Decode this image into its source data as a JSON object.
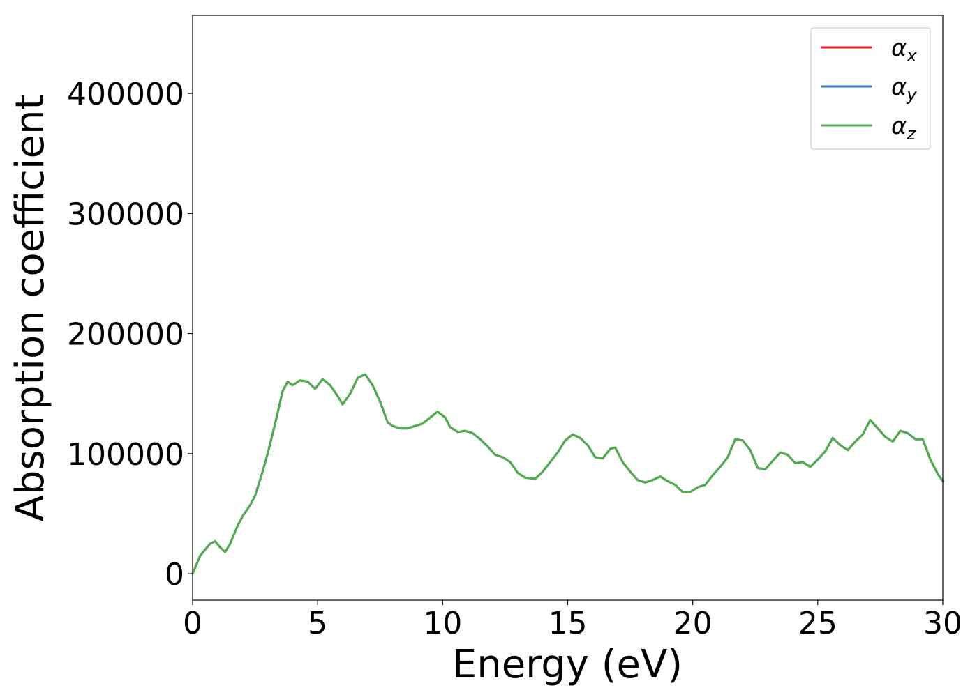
{
  "chart_data": {
    "type": "line",
    "title": "",
    "xlabel": "Energy (eV)",
    "ylabel": "Absorption coefficient",
    "xlim": [
      0,
      30
    ],
    "ylim": [
      -22000,
      465000
    ],
    "xticks": [
      0,
      5,
      10,
      15,
      20,
      25,
      30
    ],
    "yticks": [
      0,
      100000,
      200000,
      300000,
      400000
    ],
    "grid": false,
    "legend_position": "top-right",
    "x": [
      0,
      0.3,
      0.5,
      0.7,
      0.9,
      1.1,
      1.3,
      1.5,
      1.8,
      2.0,
      2.3,
      2.5,
      2.8,
      3.0,
      3.3,
      3.5,
      3.6,
      3.8,
      4.0,
      4.3,
      4.6,
      4.9,
      5.2,
      5.5,
      5.8,
      6.0,
      6.3,
      6.6,
      6.9,
      7.2,
      7.5,
      7.8,
      8.0,
      8.3,
      8.6,
      8.9,
      9.2,
      9.5,
      9.8,
      10.1,
      10.3,
      10.6,
      10.9,
      11.2,
      11.5,
      11.8,
      12.1,
      12.4,
      12.7,
      13.0,
      13.3,
      13.7,
      14.0,
      14.3,
      14.6,
      14.9,
      15.2,
      15.5,
      15.8,
      16.1,
      16.4,
      16.7,
      16.9,
      17.2,
      17.5,
      17.8,
      18.1,
      18.4,
      18.7,
      19.0,
      19.3,
      19.6,
      19.9,
      20.2,
      20.5,
      20.8,
      21.1,
      21.4,
      21.7,
      22.0,
      22.3,
      22.6,
      22.9,
      23.2,
      23.5,
      23.8,
      24.1,
      24.4,
      24.7,
      25.0,
      25.3,
      25.6,
      25.9,
      26.2,
      26.5,
      26.8,
      27.1,
      27.4,
      27.7,
      28.0,
      28.3,
      28.6,
      28.9,
      29.2,
      29.5,
      29.8,
      30.0
    ],
    "series": [
      {
        "name": "α_x",
        "color": "#e41a1c",
        "values": [
          0,
          15000,
          20000,
          25000,
          27000,
          22000,
          18000,
          25000,
          40000,
          48000,
          57000,
          65000,
          85000,
          100000,
          125000,
          143000,
          152000,
          160000,
          157000,
          161000,
          160000,
          154000,
          162000,
          157000,
          148000,
          141000,
          150000,
          163000,
          166000,
          157000,
          143000,
          126000,
          123000,
          121000,
          121000,
          123000,
          125000,
          130000,
          135000,
          130000,
          122000,
          118000,
          119000,
          117000,
          112000,
          106000,
          99000,
          97000,
          93000,
          84000,
          80000,
          79000,
          85000,
          93000,
          101000,
          111000,
          116000,
          113000,
          107000,
          97000,
          96000,
          104000,
          105000,
          93000,
          85000,
          78000,
          76000,
          78000,
          81000,
          77000,
          74000,
          68000,
          68000,
          72000,
          74000,
          82000,
          89000,
          97000,
          112000,
          111000,
          103000,
          88000,
          87000,
          94000,
          101000,
          99000,
          92000,
          93000,
          89000,
          95000,
          102000,
          113000,
          107000,
          103000,
          110000,
          116000,
          128000,
          121000,
          114000,
          110000,
          119000,
          117000,
          112000,
          112000,
          95000,
          83000,
          77000
        ]
      },
      {
        "name": "α_y",
        "color": "#377eb8",
        "values": [
          0,
          15000,
          20000,
          25000,
          27000,
          22000,
          18000,
          25000,
          40000,
          48000,
          57000,
          65000,
          85000,
          100000,
          125000,
          143000,
          152000,
          160000,
          157000,
          161000,
          160000,
          154000,
          162000,
          157000,
          148000,
          141000,
          150000,
          163000,
          166000,
          157000,
          143000,
          126000,
          123000,
          121000,
          121000,
          123000,
          125000,
          130000,
          135000,
          130000,
          122000,
          118000,
          119000,
          117000,
          112000,
          106000,
          99000,
          97000,
          93000,
          84000,
          80000,
          79000,
          85000,
          93000,
          101000,
          111000,
          116000,
          113000,
          107000,
          97000,
          96000,
          104000,
          105000,
          93000,
          85000,
          78000,
          76000,
          78000,
          81000,
          77000,
          74000,
          68000,
          68000,
          72000,
          74000,
          82000,
          89000,
          97000,
          112000,
          111000,
          103000,
          88000,
          87000,
          94000,
          101000,
          99000,
          92000,
          93000,
          89000,
          95000,
          102000,
          113000,
          107000,
          103000,
          110000,
          116000,
          128000,
          121000,
          114000,
          110000,
          119000,
          117000,
          112000,
          112000,
          95000,
          83000,
          77000
        ]
      },
      {
        "name": "α_z",
        "color": "#4daf4a",
        "values": [
          0,
          15000,
          20000,
          25000,
          27000,
          22000,
          18000,
          25000,
          40000,
          48000,
          57000,
          65000,
          85000,
          100000,
          125000,
          143000,
          152000,
          160000,
          157000,
          161000,
          160000,
          154000,
          162000,
          157000,
          148000,
          141000,
          150000,
          163000,
          166000,
          157000,
          143000,
          126000,
          123000,
          121000,
          121000,
          123000,
          125000,
          130000,
          135000,
          130000,
          122000,
          118000,
          119000,
          117000,
          112000,
          106000,
          99000,
          97000,
          93000,
          84000,
          80000,
          79000,
          85000,
          93000,
          101000,
          111000,
          116000,
          113000,
          107000,
          97000,
          96000,
          104000,
          105000,
          93000,
          85000,
          78000,
          76000,
          78000,
          81000,
          77000,
          74000,
          68000,
          68000,
          72000,
          74000,
          82000,
          89000,
          97000,
          112000,
          111000,
          103000,
          88000,
          87000,
          94000,
          101000,
          99000,
          92000,
          93000,
          89000,
          95000,
          102000,
          113000,
          107000,
          103000,
          110000,
          116000,
          128000,
          121000,
          114000,
          110000,
          119000,
          117000,
          112000,
          112000,
          95000,
          83000,
          77000
        ]
      }
    ],
    "legend": [
      {
        "symbol": "α",
        "subscript": "x"
      },
      {
        "symbol": "α",
        "subscript": "y"
      },
      {
        "symbol": "α",
        "subscript": "z"
      }
    ]
  }
}
